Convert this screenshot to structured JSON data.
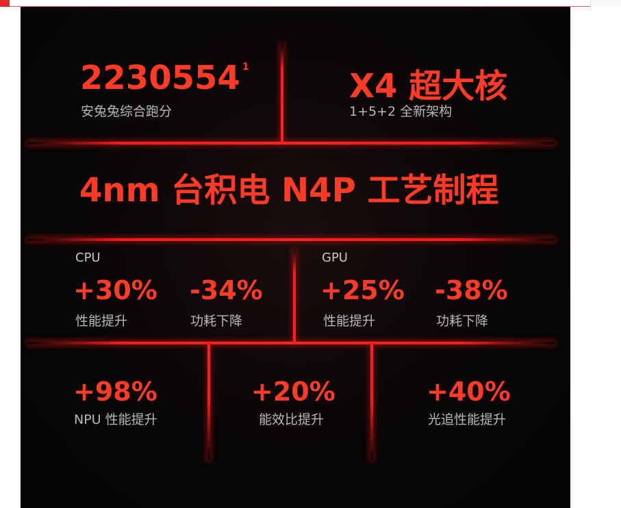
{
  "score": {
    "value": "2230554",
    "footnote": "1",
    "caption": "安兔兔综合跑分"
  },
  "core": {
    "title": "X4 超大核",
    "caption": "1+5+2 全新架构"
  },
  "process": {
    "title": "4nm 台积电 N4P 工艺制程"
  },
  "cpu": {
    "label": "CPU",
    "perf_value": "+30%",
    "perf_caption": "性能提升",
    "power_value": "-34%",
    "power_caption": "功耗下降"
  },
  "gpu": {
    "label": "GPU",
    "perf_value": "+25%",
    "perf_caption": "性能提升",
    "power_value": "-38%",
    "power_caption": "功耗下降"
  },
  "npu": {
    "value": "+98%",
    "caption": "NPU 性能提升"
  },
  "efficiency": {
    "value": "+20%",
    "caption": "能效比提升"
  },
  "raytracing": {
    "value": "+40%",
    "caption": "光追性能提升"
  },
  "colors": {
    "accent": "#ff3b26",
    "glow_line": "#ff1a1a",
    "background": "#070606",
    "caption": "#b9b9b9"
  }
}
